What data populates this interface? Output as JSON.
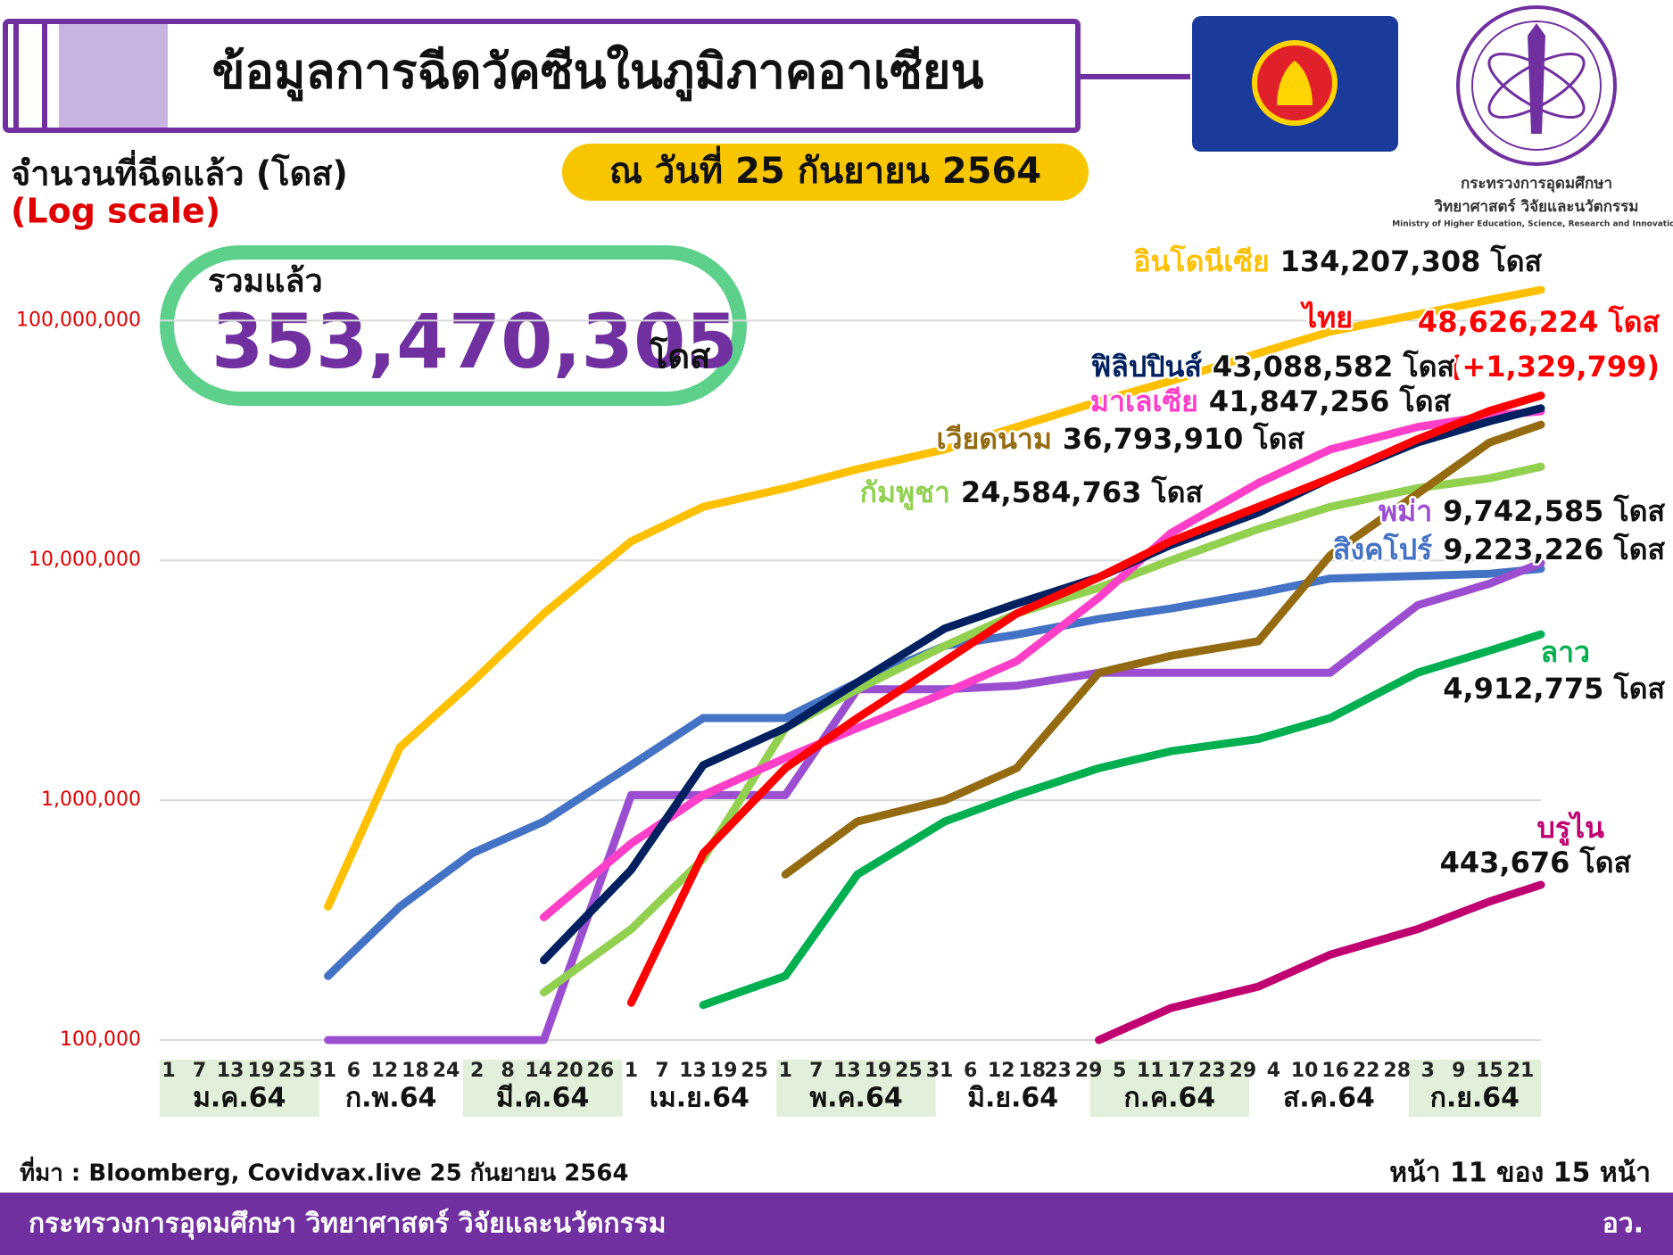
{
  "chart_data": {
    "type": "line",
    "title": "ข้อมูลการฉีดวัคซีนในภูมิภาคอาเซียน",
    "subtitle": "ณ วันที่ 25 กันยายน 2564",
    "y_label": "จำนวนที่ฉีดแล้ว (โดส)",
    "y_note": "(Log scale)",
    "total": {
      "label": "รวมแล้ว",
      "value": "353,470,305",
      "unit": "โดส"
    },
    "log_y": true,
    "grid": true,
    "xlim": [
      "2021-01-01",
      "2021-09-25"
    ],
    "ylim": [
      100000,
      150000000
    ],
    "yticks": [
      {
        "value": 100000,
        "label": "100,000"
      },
      {
        "value": 1000000,
        "label": "1,000,000"
      },
      {
        "value": 10000000,
        "label": "10,000,000"
      },
      {
        "value": 100000000,
        "label": "100,000,000"
      }
    ],
    "xticks": [
      {
        "value": "2021-01-01",
        "label": "1"
      },
      {
        "value": "2021-01-07",
        "label": "7"
      },
      {
        "value": "2021-01-13",
        "label": "13"
      },
      {
        "value": "2021-01-19",
        "label": "19"
      },
      {
        "value": "2021-01-25",
        "label": "25"
      },
      {
        "value": "2021-01-31",
        "label": "31"
      },
      {
        "value": "2021-02-06",
        "label": "6"
      },
      {
        "value": "2021-02-12",
        "label": "12"
      },
      {
        "value": "2021-02-18",
        "label": "18"
      },
      {
        "value": "2021-02-24",
        "label": "24"
      },
      {
        "value": "2021-03-02",
        "label": "2"
      },
      {
        "value": "2021-03-08",
        "label": "8"
      },
      {
        "value": "2021-03-14",
        "label": "14"
      },
      {
        "value": "2021-03-20",
        "label": "20"
      },
      {
        "value": "2021-03-26",
        "label": "26"
      },
      {
        "value": "2021-04-01",
        "label": "1"
      },
      {
        "value": "2021-04-07",
        "label": "7"
      },
      {
        "value": "2021-04-13",
        "label": "13"
      },
      {
        "value": "2021-04-19",
        "label": "19"
      },
      {
        "value": "2021-04-25",
        "label": "25"
      },
      {
        "value": "2021-05-01",
        "label": "1"
      },
      {
        "value": "2021-05-07",
        "label": "7"
      },
      {
        "value": "2021-05-13",
        "label": "13"
      },
      {
        "value": "2021-05-19",
        "label": "19"
      },
      {
        "value": "2021-05-25",
        "label": "25"
      },
      {
        "value": "2021-05-31",
        "label": "31"
      },
      {
        "value": "2021-06-06",
        "label": "6"
      },
      {
        "value": "2021-06-12",
        "label": "12"
      },
      {
        "value": "2021-06-18",
        "label": "18"
      },
      {
        "value": "2021-06-23",
        "label": "23"
      },
      {
        "value": "2021-06-29",
        "label": "29"
      },
      {
        "value": "2021-07-05",
        "label": "5"
      },
      {
        "value": "2021-07-11",
        "label": "11"
      },
      {
        "value": "2021-07-17",
        "label": "17"
      },
      {
        "value": "2021-07-23",
        "label": "23"
      },
      {
        "value": "2021-07-29",
        "label": "29"
      },
      {
        "value": "2021-08-04",
        "label": "4"
      },
      {
        "value": "2021-08-10",
        "label": "10"
      },
      {
        "value": "2021-08-16",
        "label": "16"
      },
      {
        "value": "2021-08-22",
        "label": "22"
      },
      {
        "value": "2021-08-28",
        "label": "28"
      },
      {
        "value": "2021-09-03",
        "label": "3"
      },
      {
        "value": "2021-09-09",
        "label": "9"
      },
      {
        "value": "2021-09-15",
        "label": "15"
      },
      {
        "value": "2021-09-21",
        "label": "21"
      }
    ],
    "x_group_labels": [
      "ม.ค.64",
      "ก.พ.64",
      "มี.ค.64",
      "เม.ย.64",
      "พ.ค.64",
      "มิ.ย.64",
      "ก.ค.64",
      "ส.ค.64",
      "ก.ย.64"
    ],
    "x": [
      "2021-01-15",
      "2021-02-01",
      "2021-02-15",
      "2021-03-01",
      "2021-03-15",
      "2021-04-01",
      "2021-04-15",
      "2021-05-01",
      "2021-05-15",
      "2021-06-01",
      "2021-06-15",
      "2021-07-01",
      "2021-07-15",
      "2021-08-01",
      "2021-08-15",
      "2021-09-01",
      "2021-09-15",
      "2021-09-25"
    ],
    "series": [
      {
        "name": "อินโดนีเซีย",
        "color": "#ffc000",
        "end_label": "134,207,308 โดส",
        "values": [
          null,
          360000,
          1660000,
          3100000,
          6000000,
          12000000,
          16700000,
          20000000,
          24000000,
          29000000,
          36000000,
          46000000,
          56000000,
          73000000,
          90000000,
          106000000,
          122000000,
          134207308
        ]
      },
      {
        "name": "ไทย",
        "color": "#ff0000",
        "end_label": "48,626,224 โดส",
        "change_label": "(+1,329,799)",
        "values": [
          null,
          null,
          null,
          null,
          null,
          143000,
          600000,
          1360000,
          2200000,
          3800000,
          6000000,
          8500000,
          12000000,
          16700000,
          22000000,
          32000000,
          42000000,
          48626224
        ]
      },
      {
        "name": "ฟิลิปปินส์",
        "color": "#002060",
        "end_label": "43,088,582 โดส",
        "values": [
          null,
          null,
          null,
          null,
          215000,
          513000,
          1400000,
          2000000,
          3100000,
          5200000,
          6600000,
          8500000,
          11600000,
          15800000,
          22000000,
          31000000,
          38000000,
          43088582
        ]
      },
      {
        "name": "มาเลเซีย",
        "color": "#ff3fc8",
        "end_label": "41,847,256 โดส",
        "values": [
          null,
          null,
          null,
          null,
          325000,
          660000,
          1050000,
          1500000,
          2000000,
          2800000,
          3800000,
          7000000,
          13000000,
          21000000,
          29000000,
          36000000,
          40000000,
          41847256
        ]
      },
      {
        "name": "เวียดนาม",
        "color": "#946b10",
        "end_label": "36,793,910 โดส",
        "values": [
          null,
          null,
          null,
          null,
          null,
          null,
          null,
          490000,
          815000,
          1000000,
          1360000,
          3400000,
          4000000,
          4600000,
          10500000,
          19000000,
          31000000,
          36793910
        ]
      },
      {
        "name": "กัมพูชา",
        "color": "#92d050",
        "end_label": "24,584,763 โดส",
        "values": [
          null,
          null,
          null,
          null,
          158000,
          290000,
          570000,
          2000000,
          2900000,
          4400000,
          6000000,
          7700000,
          10000000,
          13500000,
          16700000,
          20000000,
          22000000,
          24584763
        ]
      },
      {
        "name": "พม่า",
        "color": "#9b4fd0",
        "end_label": "9,742,585 โดส",
        "values": [
          null,
          100000,
          100000,
          100000,
          100000,
          1050000,
          1050000,
          1050000,
          2900000,
          2900000,
          3000000,
          3400000,
          3400000,
          3400000,
          3400000,
          6500000,
          8000000,
          9742585
        ]
      },
      {
        "name": "สิงคโปร์",
        "color": "#4472c4",
        "end_label": "9,223,226 โดส",
        "values": [
          null,
          185000,
          360000,
          600000,
          815000,
          1400000,
          2200000,
          2200000,
          3100000,
          4400000,
          4900000,
          5700000,
          6300000,
          7300000,
          8400000,
          8600000,
          8800000,
          9223226
        ]
      },
      {
        "name": "ลาว",
        "color": "#00b050",
        "end_label": "4,912,775 โดส",
        "values": [
          null,
          null,
          null,
          null,
          null,
          null,
          140000,
          185000,
          490000,
          815000,
          1050000,
          1360000,
          1600000,
          1800000,
          2200000,
          3400000,
          4200000,
          4912775
        ]
      },
      {
        "name": "บรูไน",
        "color": "#c00070",
        "end_label": "443,676 โดส",
        "values": [
          null,
          null,
          null,
          null,
          null,
          null,
          null,
          null,
          null,
          null,
          null,
          100000,
          136000,
          167000,
          227000,
          290000,
          378000,
          443676
        ]
      }
    ],
    "source": "ที่มา : Bloomberg, Covidvax.live 25 กันยายน 2564",
    "page_number": "หน้า 11 ของ 15 หน้า"
  },
  "page": {
    "footer": "กระทรวงการอุดมศึกษา วิทยาศาสตร์ วิจัยและนวัตกรรม",
    "footer_short": "อว.",
    "logo_lines": [
      "กระทรวงการอุดมศึกษา",
      "วิทยาศาสตร์ วิจัยและนวัตกรรม",
      "Ministry of Higher Education, Science, Research and Innovation"
    ]
  }
}
